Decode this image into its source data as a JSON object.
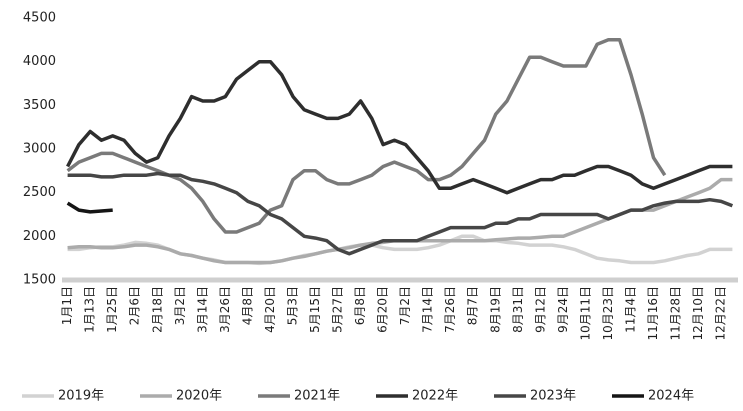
{
  "chart_data": {
    "type": "line",
    "categories": [
      "1月1日",
      null,
      "1月13日",
      null,
      "1月25日",
      null,
      "2月6日",
      null,
      "2月18日",
      null,
      "3月2日",
      null,
      "3月14日",
      null,
      "3月26日",
      null,
      "4月8日",
      null,
      "4月20日",
      null,
      "5月3日",
      null,
      "5月15日",
      null,
      "5月27日",
      null,
      "6月8日",
      null,
      "6月20日",
      null,
      "7月2日",
      null,
      "7月14日",
      null,
      "7月26日",
      null,
      "8月7日",
      null,
      "8月19日",
      null,
      "8月31日",
      null,
      "9月12日",
      null,
      "9月24日",
      null,
      "10月11日",
      null,
      "10月23日",
      null,
      "11月4日",
      null,
      "11月16日",
      null,
      "11月28日",
      null,
      "12月10日",
      null,
      "12月22日",
      null
    ],
    "series": [
      {
        "name": "2019年",
        "color": "#d2d2d2",
        "values": [
          1850,
          1850,
          1870,
          1880,
          1880,
          1900,
          1930,
          1920,
          1900,
          1850,
          1800,
          1780,
          1750,
          1730,
          1700,
          1700,
          1700,
          1690,
          1700,
          1720,
          1750,
          1780,
          1800,
          1830,
          1850,
          1880,
          1900,
          1900,
          1870,
          1850,
          1850,
          1850,
          1870,
          1900,
          1950,
          2000,
          2000,
          1950,
          1950,
          1930,
          1920,
          1900,
          1900,
          1900,
          1880,
          1850,
          1800,
          1750,
          1730,
          1720,
          1700,
          1700,
          1700,
          1720,
          1750,
          1780,
          1800,
          1850,
          1850,
          1850
        ]
      },
      {
        "name": "2020年",
        "color": "#ababab",
        "values": [
          1870,
          1880,
          1880,
          1870,
          1870,
          1880,
          1900,
          1900,
          1880,
          1850,
          1800,
          1780,
          1750,
          1720,
          1700,
          1700,
          1700,
          1700,
          1700,
          1720,
          1750,
          1770,
          1800,
          1830,
          1850,
          1870,
          1900,
          1920,
          1930,
          1950,
          1950,
          1950,
          1950,
          1950,
          1950,
          1950,
          1950,
          1950,
          1960,
          1970,
          1980,
          1980,
          1990,
          2000,
          2000,
          2050,
          2100,
          2150,
          2200,
          2250,
          2300,
          2300,
          2300,
          2350,
          2400,
          2450,
          2500,
          2550,
          2650,
          2650
        ]
      },
      {
        "name": "2021年",
        "color": "#7a7a7a",
        "values": [
          2750,
          2850,
          2900,
          2950,
          2950,
          2900,
          2850,
          2800,
          2750,
          2700,
          2650,
          2550,
          2400,
          2200,
          2050,
          2050,
          2100,
          2150,
          2300,
          2350,
          2650,
          2750,
          2750,
          2650,
          2600,
          2600,
          2650,
          2700,
          2800,
          2850,
          2800,
          2750,
          2650,
          2650,
          2700,
          2800,
          2950,
          3100,
          3400,
          3550,
          3800,
          4050,
          4050,
          4000,
          3950,
          3950,
          3950,
          4200,
          4250,
          4250,
          3850,
          3400,
          2900,
          2700,
          null,
          null,
          null,
          null,
          null,
          null
        ]
      },
      {
        "name": "2022年",
        "color": "#2e2e2e",
        "values": [
          2800,
          3050,
          3200,
          3100,
          3150,
          3100,
          2950,
          2850,
          2900,
          3150,
          3350,
          3600,
          3550,
          3550,
          3600,
          3800,
          3900,
          4000,
          4000,
          3850,
          3600,
          3450,
          3400,
          3350,
          3350,
          3400,
          3550,
          3350,
          3050,
          3100,
          3050,
          2900,
          2750,
          2550,
          2550,
          2600,
          2650,
          2600,
          2550,
          2500,
          2550,
          2600,
          2650,
          2650,
          2700,
          2700,
          2750,
          2800,
          2800,
          2750,
          2700,
          2600,
          2550,
          2600,
          2650,
          2700,
          2750,
          2800,
          2800,
          2800
        ]
      },
      {
        "name": "2023年",
        "color": "#464646",
        "values": [
          2700,
          2700,
          2700,
          2680,
          2680,
          2700,
          2700,
          2700,
          2720,
          2700,
          2700,
          2650,
          2630,
          2600,
          2550,
          2500,
          2400,
          2350,
          2250,
          2200,
          2100,
          2000,
          1980,
          1950,
          1850,
          1800,
          1850,
          1900,
          1950,
          1950,
          1950,
          1950,
          2000,
          2050,
          2100,
          2100,
          2100,
          2100,
          2150,
          2150,
          2200,
          2200,
          2250,
          2250,
          2250,
          2250,
          2250,
          2250,
          2200,
          2250,
          2300,
          2300,
          2350,
          2380,
          2400,
          2400,
          2400,
          2420,
          2400,
          2350
        ]
      },
      {
        "name": "2024年",
        "color": "#151515",
        "values": [
          2380,
          2300,
          2280,
          2290,
          2300,
          null,
          null,
          null,
          null,
          null,
          null,
          null,
          null,
          null,
          null,
          null,
          null,
          null,
          null,
          null,
          null,
          null,
          null,
          null,
          null,
          null,
          null,
          null,
          null,
          null,
          null,
          null,
          null,
          null,
          null,
          null,
          null,
          null,
          null,
          null,
          null,
          null,
          null,
          null,
          null,
          null,
          null,
          null,
          null,
          null,
          null,
          null,
          null,
          null,
          null,
          null,
          null,
          null,
          null,
          null
        ]
      }
    ],
    "ylim": [
      1500,
      4500
    ],
    "yticks": [
      1500,
      2000,
      2500,
      3000,
      3500,
      4000,
      4500
    ],
    "grid": false
  }
}
